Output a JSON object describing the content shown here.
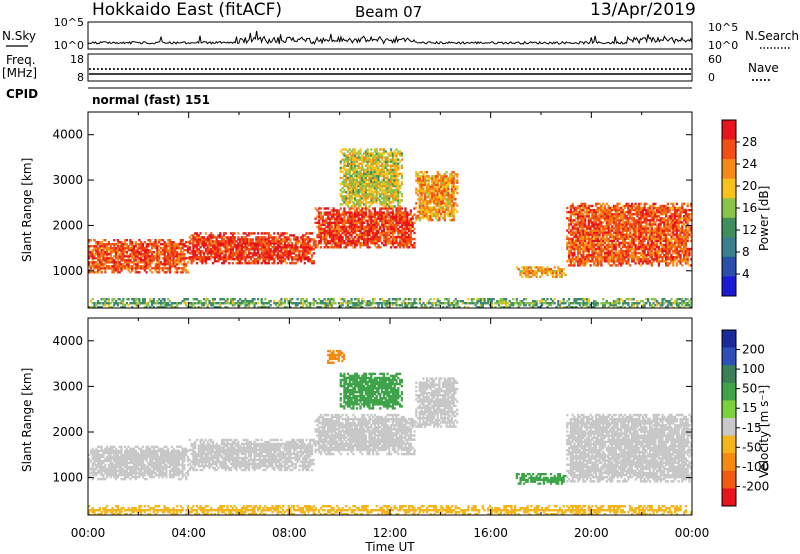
{
  "header": {
    "station": "Hokkaido East (fitACF)",
    "beam": "Beam 07",
    "date": "13/Apr/2019"
  },
  "noise_panel": {
    "left_label": "N.Sky",
    "right_label": "N.Search",
    "left_ticks": [
      "10^5",
      "10^0"
    ],
    "right_ticks": [
      "10^5",
      "10^0"
    ]
  },
  "freq_panel": {
    "left_label_line1": "Freq.",
    "left_label_line2": "[MHz]",
    "right_label": "Nave",
    "left_ticks": [
      "18",
      "8"
    ],
    "right_ticks": [
      "60",
      "0"
    ]
  },
  "cpid_panel": {
    "label": "CPID",
    "text": "normal (fast) 151"
  },
  "power_colorbar": {
    "label": "Power [dB]",
    "ticks": [
      "28",
      "24",
      "20",
      "16",
      "12",
      "8",
      "4"
    ],
    "colors": [
      "#e8141c",
      "#f24e14",
      "#f58a18",
      "#f7c21a",
      "#8ac24a",
      "#3f8f5e",
      "#3b7f8c",
      "#2a4fa8",
      "#1a1ad4"
    ]
  },
  "velocity_colorbar": {
    "label": "Velocity [m s⁻¹]",
    "ticks": [
      "200",
      "100",
      "50",
      "15",
      "-15",
      "-50",
      "-100",
      "-200"
    ],
    "colors": [
      "#1a2a9a",
      "#2f4fb8",
      "#3a7f5a",
      "#3fa34a",
      "#7cd23c",
      "#c8c8c8",
      "#f5b51a",
      "#f58a10",
      "#f25a12",
      "#e8141c"
    ]
  },
  "axes": {
    "ylabel": "Slant Range [km]",
    "xlabel": "Time UT",
    "yticks": [
      "4000",
      "3000",
      "2000",
      "1000"
    ],
    "xticks": [
      "00:00",
      "04:00",
      "08:00",
      "12:00",
      "16:00",
      "20:00",
      "00:00"
    ]
  },
  "chart_data": [
    {
      "type": "heatmap",
      "name": "Power",
      "xlabel": "Time UT",
      "ylabel": "Slant Range [km]",
      "xlim": [
        "00:00",
        "24:00"
      ],
      "ylim": [
        180,
        4500
      ],
      "colorbar": {
        "label": "Power [dB]",
        "ticks": [
          4,
          8,
          12,
          16,
          20,
          24,
          28
        ]
      },
      "echo_regions": [
        {
          "t_start": 0.0,
          "t_end": 4.0,
          "range_start": 950,
          "range_end": 1700,
          "level": 26
        },
        {
          "t_start": 4.0,
          "t_end": 9.0,
          "range_start": 1150,
          "range_end": 1850,
          "level": 28
        },
        {
          "t_start": 9.0,
          "t_end": 13.0,
          "range_start": 1500,
          "range_end": 2400,
          "level": 28
        },
        {
          "t_start": 13.0,
          "t_end": 14.7,
          "range_start": 2100,
          "range_end": 3200,
          "level": 22
        },
        {
          "t_start": 10.0,
          "t_end": 12.5,
          "range_start": 2400,
          "range_end": 3700,
          "level": 18
        },
        {
          "t_start": 17.0,
          "t_end": 19.0,
          "range_start": 850,
          "range_end": 1100,
          "level": 22
        },
        {
          "t_start": 19.0,
          "t_end": 24.0,
          "range_start": 1100,
          "range_end": 2500,
          "level": 26
        },
        {
          "t_start": 0.0,
          "t_end": 24.0,
          "range_start": 180,
          "range_end": 400,
          "level": 14
        }
      ]
    },
    {
      "type": "heatmap",
      "name": "Velocity",
      "xlabel": "Time UT",
      "ylabel": "Slant Range [km]",
      "xlim": [
        "00:00",
        "24:00"
      ],
      "ylim": [
        180,
        4500
      ],
      "colorbar": {
        "label": "Velocity [m s⁻¹]",
        "ticks": [
          -200,
          -100,
          -50,
          -15,
          15,
          50,
          100,
          200
        ]
      },
      "echo_regions": [
        {
          "t_start": 0.0,
          "t_end": 4.0,
          "range_start": 950,
          "range_end": 1700,
          "level": 0
        },
        {
          "t_start": 4.0,
          "t_end": 9.0,
          "range_start": 1150,
          "range_end": 1850,
          "level": 0
        },
        {
          "t_start": 9.0,
          "t_end": 13.0,
          "range_start": 1500,
          "range_end": 2400,
          "level": 0
        },
        {
          "t_start": 13.0,
          "t_end": 14.7,
          "range_start": 2100,
          "range_end": 3200,
          "level": 0
        },
        {
          "t_start": 10.0,
          "t_end": 12.5,
          "range_start": 2500,
          "range_end": 3300,
          "level": 30
        },
        {
          "t_start": 9.5,
          "t_end": 10.2,
          "range_start": 3500,
          "range_end": 3800,
          "level": -60
        },
        {
          "t_start": 17.0,
          "t_end": 19.0,
          "range_start": 850,
          "range_end": 1100,
          "level": 35
        },
        {
          "t_start": 19.0,
          "t_end": 24.0,
          "range_start": 900,
          "range_end": 2400,
          "level": 0
        },
        {
          "t_start": 0.0,
          "t_end": 24.0,
          "range_start": 180,
          "range_end": 400,
          "level": -40
        }
      ]
    }
  ]
}
